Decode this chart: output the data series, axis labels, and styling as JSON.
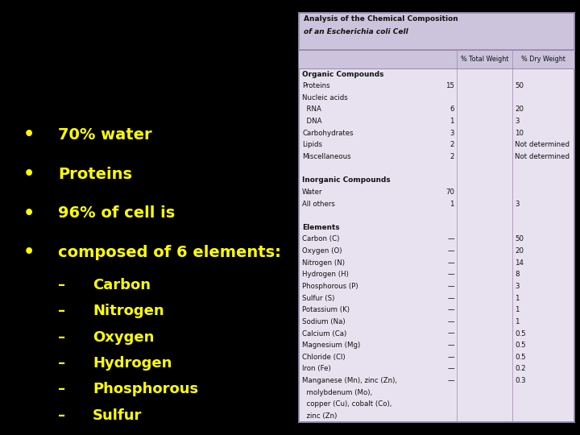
{
  "background_color": "#000000",
  "bullet_points": [
    "70% water",
    "Proteins",
    "96% of cell is",
    "composed of 6 elements:"
  ],
  "sub_bullets": [
    "Carbon",
    "Nitrogen",
    "Oxygen",
    "Hydrogen",
    "Phosphorous",
    "Sulfur"
  ],
  "bullet_color": "#ffff00",
  "sub_bullet_color": "#ffff00",
  "table_header_title_line1": "Analysis of the Chemical Composition",
  "table_header_title_line2": "of an Escherichia coli Cell",
  "table_col_headers": [
    "% Total Weight",
    "% Dry Weight"
  ],
  "table_rows": [
    [
      "Organic Compounds",
      "",
      "",
      true
    ],
    [
      "Proteins",
      "15",
      "50",
      false
    ],
    [
      "Nucleic acids",
      "",
      "",
      false
    ],
    [
      "  RNA",
      "6",
      "20",
      false
    ],
    [
      "  DNA",
      "1",
      "3",
      false
    ],
    [
      "Carbohydrates",
      "3",
      "10",
      false
    ],
    [
      "Lipids",
      "2",
      "Not determined",
      false
    ],
    [
      "Miscellaneous",
      "2",
      "Not determined",
      false
    ],
    [
      "",
      "",
      "",
      false
    ],
    [
      "Inorganic Compounds",
      "",
      "",
      true
    ],
    [
      "Water",
      "70",
      "",
      false
    ],
    [
      "All others",
      "1",
      "3",
      false
    ],
    [
      "",
      "",
      "",
      false
    ],
    [
      "Elements",
      "",
      "",
      true
    ],
    [
      "Carbon (C)",
      "—",
      "50",
      false
    ],
    [
      "Oxygen (O)",
      "—",
      "20",
      false
    ],
    [
      "Nitrogen (N)",
      "—",
      "14",
      false
    ],
    [
      "Hydrogen (H)",
      "—",
      "8",
      false
    ],
    [
      "Phosphorous (P)",
      "—",
      "3",
      false
    ],
    [
      "Sulfur (S)",
      "—",
      "1",
      false
    ],
    [
      "Potassium (K)",
      "—",
      "1",
      false
    ],
    [
      "Sodium (Na)",
      "—",
      "1",
      false
    ],
    [
      "Calcium (Ca)",
      "—",
      "0.5",
      false
    ],
    [
      "Magnesium (Mg)",
      "—",
      "0.5",
      false
    ],
    [
      "Chloride (Cl)",
      "—",
      "0.5",
      false
    ],
    [
      "Iron (Fe)",
      "—",
      "0.2",
      false
    ],
    [
      "Manganese (Mn), zinc (Zn),",
      "—",
      "0.3",
      false
    ],
    [
      "  molybdenum (Mo),",
      "",
      "",
      false
    ],
    [
      "  copper (Cu), cobalt (Co),",
      "",
      "",
      false
    ],
    [
      "  zinc (Zn)",
      "",
      "",
      false
    ]
  ],
  "table_bg": "#e8e2f0",
  "table_header_bg": "#ccc4dc",
  "table_border_color": "#9988aa",
  "bullet_fontsize": 14,
  "sub_bullet_fontsize": 13,
  "table_fontsize": 6.2
}
